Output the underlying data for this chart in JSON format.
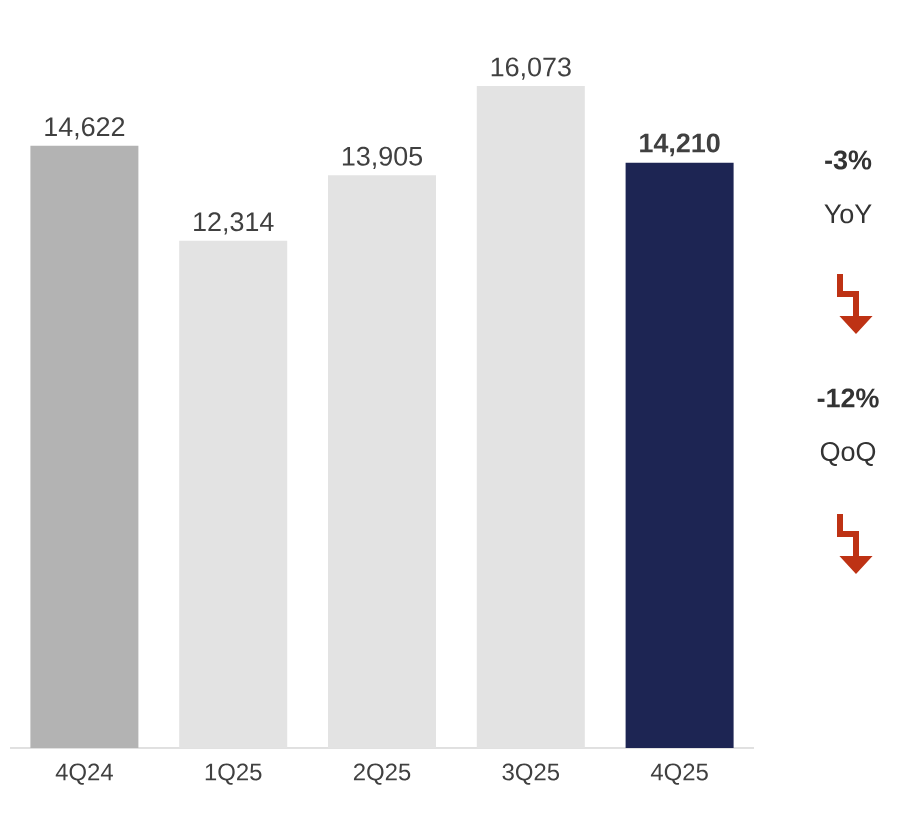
{
  "chart_data": {
    "type": "bar",
    "categories": [
      "4Q24",
      "1Q25",
      "2Q25",
      "3Q25",
      "4Q25"
    ],
    "values": [
      14622,
      12314,
      13905,
      16073,
      14210
    ],
    "colors": [
      "#b3b3b3",
      "#e3e3e3",
      "#e3e3e3",
      "#e3e3e3",
      "#1d2553"
    ],
    "value_labels": [
      "14,622",
      "12,314",
      "13,905",
      "16,073",
      "**14,210**"
    ],
    "annotations": [
      "**-3%**",
      "YoY",
      "**-12%**",
      "QoQ"
    ]
  }
}
